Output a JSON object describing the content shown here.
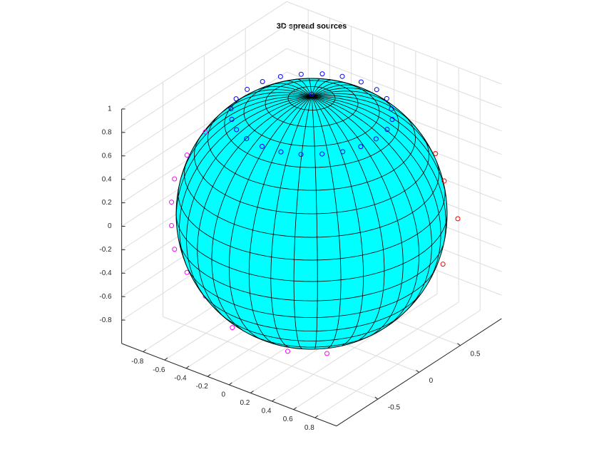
{
  "chart_data": {
    "type": "scatter3d",
    "title": "3D spread sources",
    "xlim": [
      -1,
      1
    ],
    "ylim": [
      -1,
      1
    ],
    "zlim": [
      -1,
      1
    ],
    "xticks": [
      -0.8,
      -0.6,
      -0.4,
      -0.2,
      0,
      0.2,
      0.4,
      0.6,
      0.8
    ],
    "yticks": [
      -0.5,
      0,
      0.5
    ],
    "zticks": [
      -0.8,
      -0.6,
      -0.4,
      -0.2,
      0,
      0.2,
      0.4,
      0.6,
      0.8,
      1
    ],
    "grid": true,
    "sphere_color": "#00ffff",
    "series": [
      {
        "color": "#0000ff",
        "x": [
          0.6,
          0.58,
          0.52,
          0.42,
          0.3,
          0.16,
          0,
          -0.16,
          -0.3,
          -0.42,
          -0.52,
          -0.58,
          -0.6,
          -0.58,
          -0.52,
          -0.42,
          -0.3,
          -0.16,
          0,
          0.16,
          0.3,
          0.42,
          0.52,
          0.58,
          0
        ],
        "y": [
          0,
          0.16,
          0.3,
          0.42,
          0.52,
          0.58,
          0.6,
          0.58,
          0.52,
          0.42,
          0.3,
          0.16,
          0,
          -0.16,
          -0.3,
          -0.42,
          -0.52,
          -0.58,
          -0.6,
          -0.58,
          -0.52,
          -0.42,
          -0.3,
          -0.16,
          0
        ],
        "z": [
          0.85,
          0.85,
          0.85,
          0.85,
          0.85,
          0.85,
          0.85,
          0.85,
          0.85,
          0.85,
          0.85,
          0.85,
          0.85,
          0.85,
          0.85,
          0.85,
          0.85,
          0.85,
          0.85,
          0.85,
          0.85,
          0.85,
          0.85,
          0.85,
          1.02
        ]
      },
      {
        "color": "#ff00ff",
        "x": [
          -0.62,
          -0.73,
          -0.8,
          -0.82,
          -0.82,
          -0.8,
          -0.73,
          -0.62,
          -0.48,
          0.2,
          -0.2,
          0.45
        ],
        "y": [
          -0.48,
          -0.56,
          -0.62,
          -0.63,
          -0.63,
          -0.62,
          -0.56,
          -0.48,
          -0.37,
          -0.55,
          -0.7,
          -0.4
        ],
        "z": [
          0.7,
          0.5,
          0.3,
          0.1,
          -0.1,
          -0.3,
          -0.5,
          -0.7,
          -0.85,
          -0.85,
          -0.72,
          -0.85
        ]
      },
      {
        "color": "#ff0000",
        "x": [
          0.5,
          0.3,
          0.6,
          0.85,
          0.9,
          0.8,
          0.2
        ],
        "y": [
          0.85,
          0.9,
          0.7,
          0.5,
          0.6,
          0.55,
          0.95
        ],
        "z": [
          0.3,
          0,
          -0.3,
          0.35,
          0,
          -0.4,
          -0.45
        ]
      }
    ]
  }
}
